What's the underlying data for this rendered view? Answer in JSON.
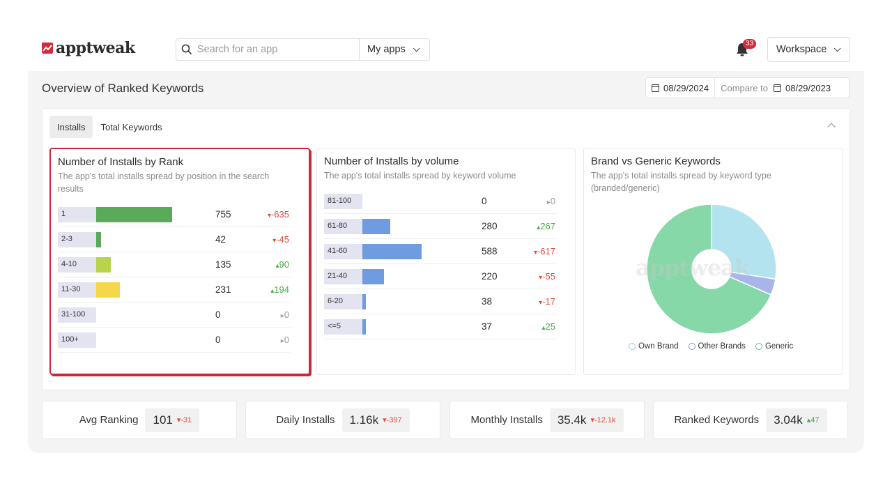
{
  "brand": {
    "name": "apptweak",
    "color": "#d42a3a"
  },
  "search": {
    "placeholder": "Search for an app",
    "apps_label": "My apps"
  },
  "notifications": {
    "count": "33"
  },
  "workspace_label": "Workspace",
  "page": {
    "title": "Overview of Ranked Keywords",
    "date": "08/29/2024",
    "compare_label": "Compare to",
    "compare_date": "08/29/2023"
  },
  "tabs": [
    {
      "label": "Installs",
      "active": true
    },
    {
      "label": "Total Keywords",
      "active": false
    }
  ],
  "rank_card": {
    "title": "Number of Installs by Rank",
    "description": "The app's total installs spread by position in the search results",
    "rows": [
      {
        "label": "1",
        "value": "755",
        "change": "-635",
        "dir": "down",
        "bar_color": "#5aaa5a",
        "level": 1.0
      },
      {
        "label": "2-3",
        "value": "42",
        "change": "-45",
        "dir": "down",
        "bar_color": "#5aaa5a",
        "level": 0.06
      },
      {
        "label": "4-10",
        "value": "135",
        "change": "90",
        "dir": "up",
        "bar_color": "#b7d44a",
        "level": 0.19
      },
      {
        "label": "11-30",
        "value": "231",
        "change": "194",
        "dir": "up",
        "bar_color": "#f5d84a",
        "level": 0.31
      },
      {
        "label": "31-100",
        "value": "0",
        "change": "0",
        "dir": "flat",
        "bar_color": "#5aaa5a",
        "level": 0
      },
      {
        "label": "100+",
        "value": "0",
        "change": "0",
        "dir": "flat",
        "bar_color": "#5aaa5a",
        "level": 0
      }
    ]
  },
  "volume_card": {
    "title": "Number of Installs by volume",
    "description": "The app's total installs spread by keyword volume",
    "rows": [
      {
        "label": "81-100",
        "value": "0",
        "change": "0",
        "dir": "flat",
        "level": 0
      },
      {
        "label": "61-80",
        "value": "280",
        "change": "267",
        "dir": "up",
        "level": 0.47
      },
      {
        "label": "41-60",
        "value": "588",
        "change": "-617",
        "dir": "down",
        "level": 1.0
      },
      {
        "label": "21-40",
        "value": "220",
        "change": "-55",
        "dir": "down",
        "level": 0.37
      },
      {
        "label": "6-20",
        "value": "38",
        "change": "-17",
        "dir": "down",
        "level": 0.06
      },
      {
        "label": "<=5",
        "value": "37",
        "change": "25",
        "dir": "up",
        "level": 0.06
      }
    ],
    "bar_color": "#6f9be0"
  },
  "brand_card": {
    "title": "Brand vs Generic Keywords",
    "description": "The app's total installs spread by keyword type (branded/generic)",
    "watermark": "apptweak",
    "slices": [
      {
        "name": "Own Brand",
        "value": 0.275,
        "color": "#b3e3ee"
      },
      {
        "name": "Other Brands",
        "value": 0.04,
        "color": "#a9b5ea"
      },
      {
        "name": "Generic",
        "value": 0.685,
        "color": "#87d8a8"
      }
    ],
    "legend_colors": [
      "#8ccde0",
      "#7f92da",
      "#5dc489"
    ]
  },
  "stats": [
    {
      "label": "Avg Ranking",
      "value": "101",
      "change": "-31",
      "dir": "down"
    },
    {
      "label": "Daily Installs",
      "value": "1.16k",
      "change": "-397",
      "dir": "down"
    },
    {
      "label": "Monthly Installs",
      "value": "35.4k",
      "change": "-12.1k",
      "dir": "down"
    },
    {
      "label": "Ranked Keywords",
      "value": "3.04k",
      "change": "47",
      "dir": "up"
    }
  ],
  "colors": {
    "down": "#e04a3a",
    "up": "#4aa84a",
    "flat": "#9a9a9a",
    "selected_border": "#c8283a"
  }
}
